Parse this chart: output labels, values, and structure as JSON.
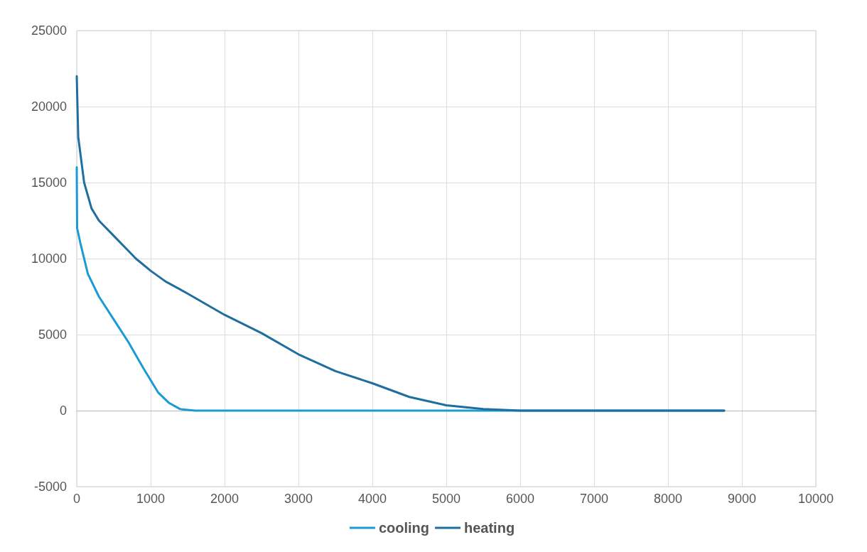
{
  "chart_data": {
    "type": "line",
    "xlim": [
      0,
      10000
    ],
    "xticks": [
      0,
      1000,
      2000,
      3000,
      4000,
      5000,
      6000,
      7000,
      8000,
      9000,
      10000
    ],
    "ylim": [
      -5000,
      25000
    ],
    "yticks": [
      -5000,
      0,
      5000,
      10000,
      15000,
      20000,
      25000
    ],
    "grid": true,
    "legend": "bottom",
    "marker": "none",
    "line_style": "solid",
    "series": [
      {
        "name": "cooling",
        "color": "#1a9bd4",
        "x": [
          0,
          5,
          50,
          150,
          300,
          500,
          700,
          900,
          1100,
          1250,
          1400,
          1600,
          8760
        ],
        "values": [
          16000,
          12000,
          11000,
          9000,
          7500,
          6000,
          4500,
          2800,
          1200,
          500,
          100,
          0,
          0
        ]
      },
      {
        "name": "heating",
        "color": "#1f6f9e",
        "x": [
          0,
          20,
          100,
          200,
          300,
          500,
          700,
          800,
          1000,
          1200,
          1500,
          2000,
          2500,
          3000,
          3500,
          4000,
          4500,
          5000,
          5500,
          6000,
          8760
        ],
        "values": [
          22000,
          18000,
          15000,
          13300,
          12500,
          11500,
          10500,
          10000,
          9200,
          8500,
          7700,
          6300,
          5100,
          3700,
          2600,
          1800,
          900,
          350,
          100,
          0,
          0
        ]
      }
    ]
  }
}
